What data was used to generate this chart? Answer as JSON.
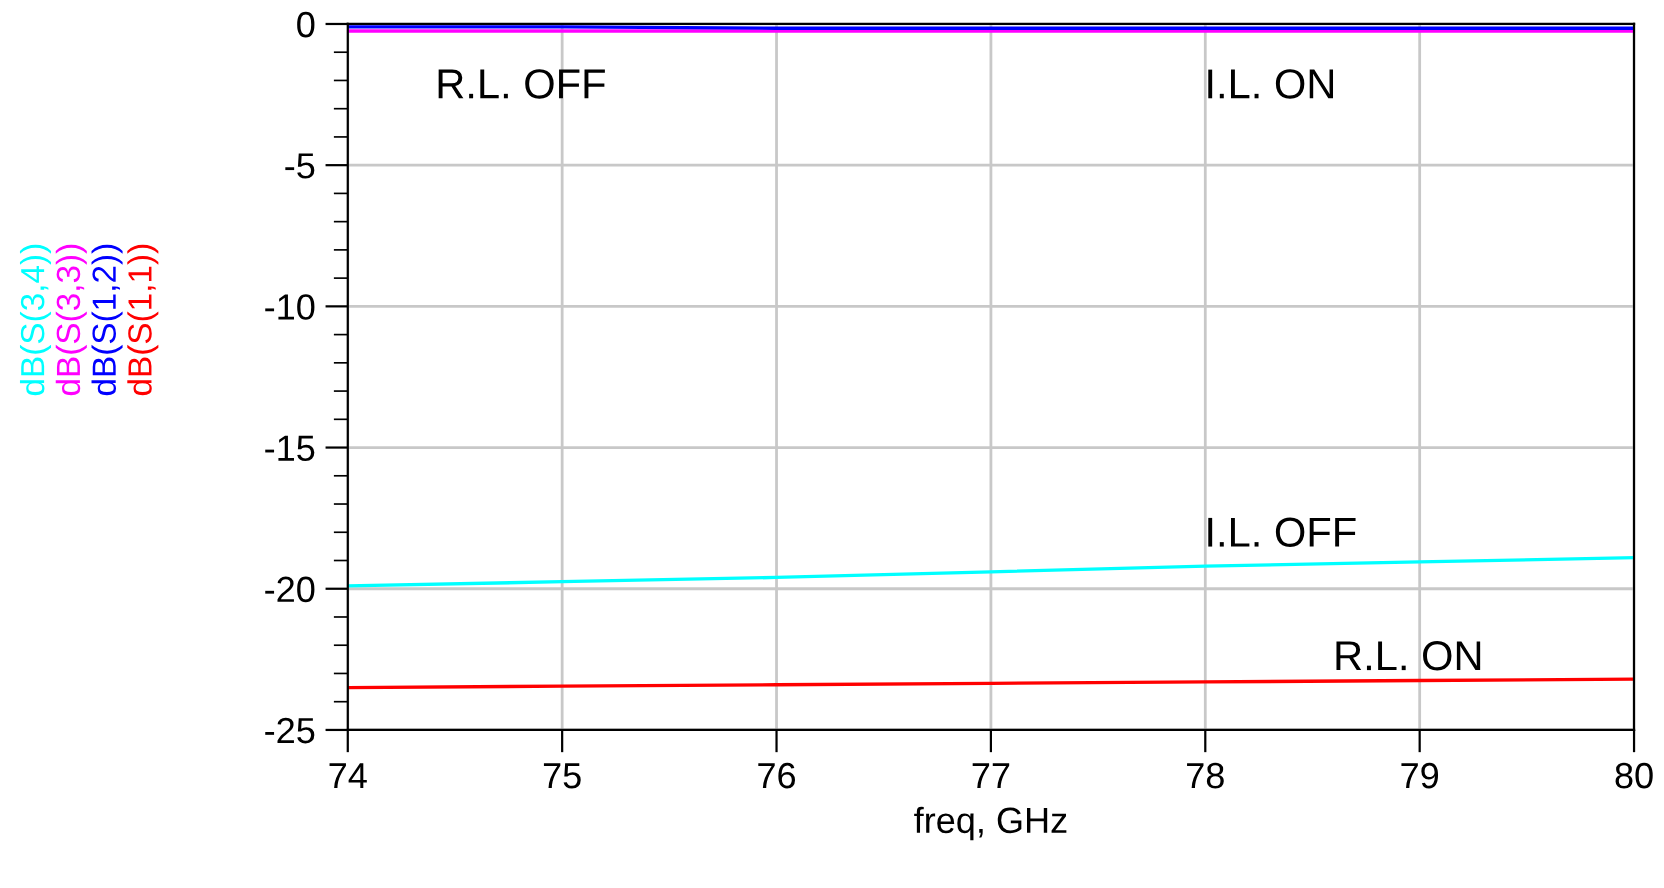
{
  "chart_data": {
    "type": "line",
    "xlabel": "freq, GHz",
    "x": [
      74,
      75,
      76,
      77,
      78,
      79,
      80
    ],
    "series": [
      {
        "name": "dB(S(3,4))",
        "color": "#00ffff",
        "values": [
          -19.9,
          -19.75,
          -19.6,
          -19.4,
          -19.2,
          -19.05,
          -18.9
        ]
      },
      {
        "name": "dB(S(3,3))",
        "color": "#ff00ff",
        "values": [
          -0.25,
          -0.25,
          -0.25,
          -0.25,
          -0.25,
          -0.25,
          -0.25
        ]
      },
      {
        "name": "dB(S(1,2))",
        "color": "#0000ff",
        "values": [
          -0.1,
          -0.1,
          -0.15,
          -0.15,
          -0.15,
          -0.15,
          -0.15
        ]
      },
      {
        "name": "dB(S(1,1))",
        "color": "#ff0000",
        "values": [
          -23.5,
          -23.45,
          -23.4,
          -23.35,
          -23.3,
          -23.25,
          -23.2
        ]
      }
    ],
    "annotations": [
      "R.L. OFF",
      "I.L. ON",
      "I.L. OFF",
      "R.L. ON"
    ],
    "xlim": [
      74,
      80
    ],
    "xticks": [
      74,
      75,
      76,
      77,
      78,
      79,
      80
    ],
    "ylim": [
      -25,
      0
    ],
    "yticks": [
      -25,
      -20,
      -15,
      -10,
      -5,
      0
    ],
    "grid": true,
    "legend": false
  }
}
